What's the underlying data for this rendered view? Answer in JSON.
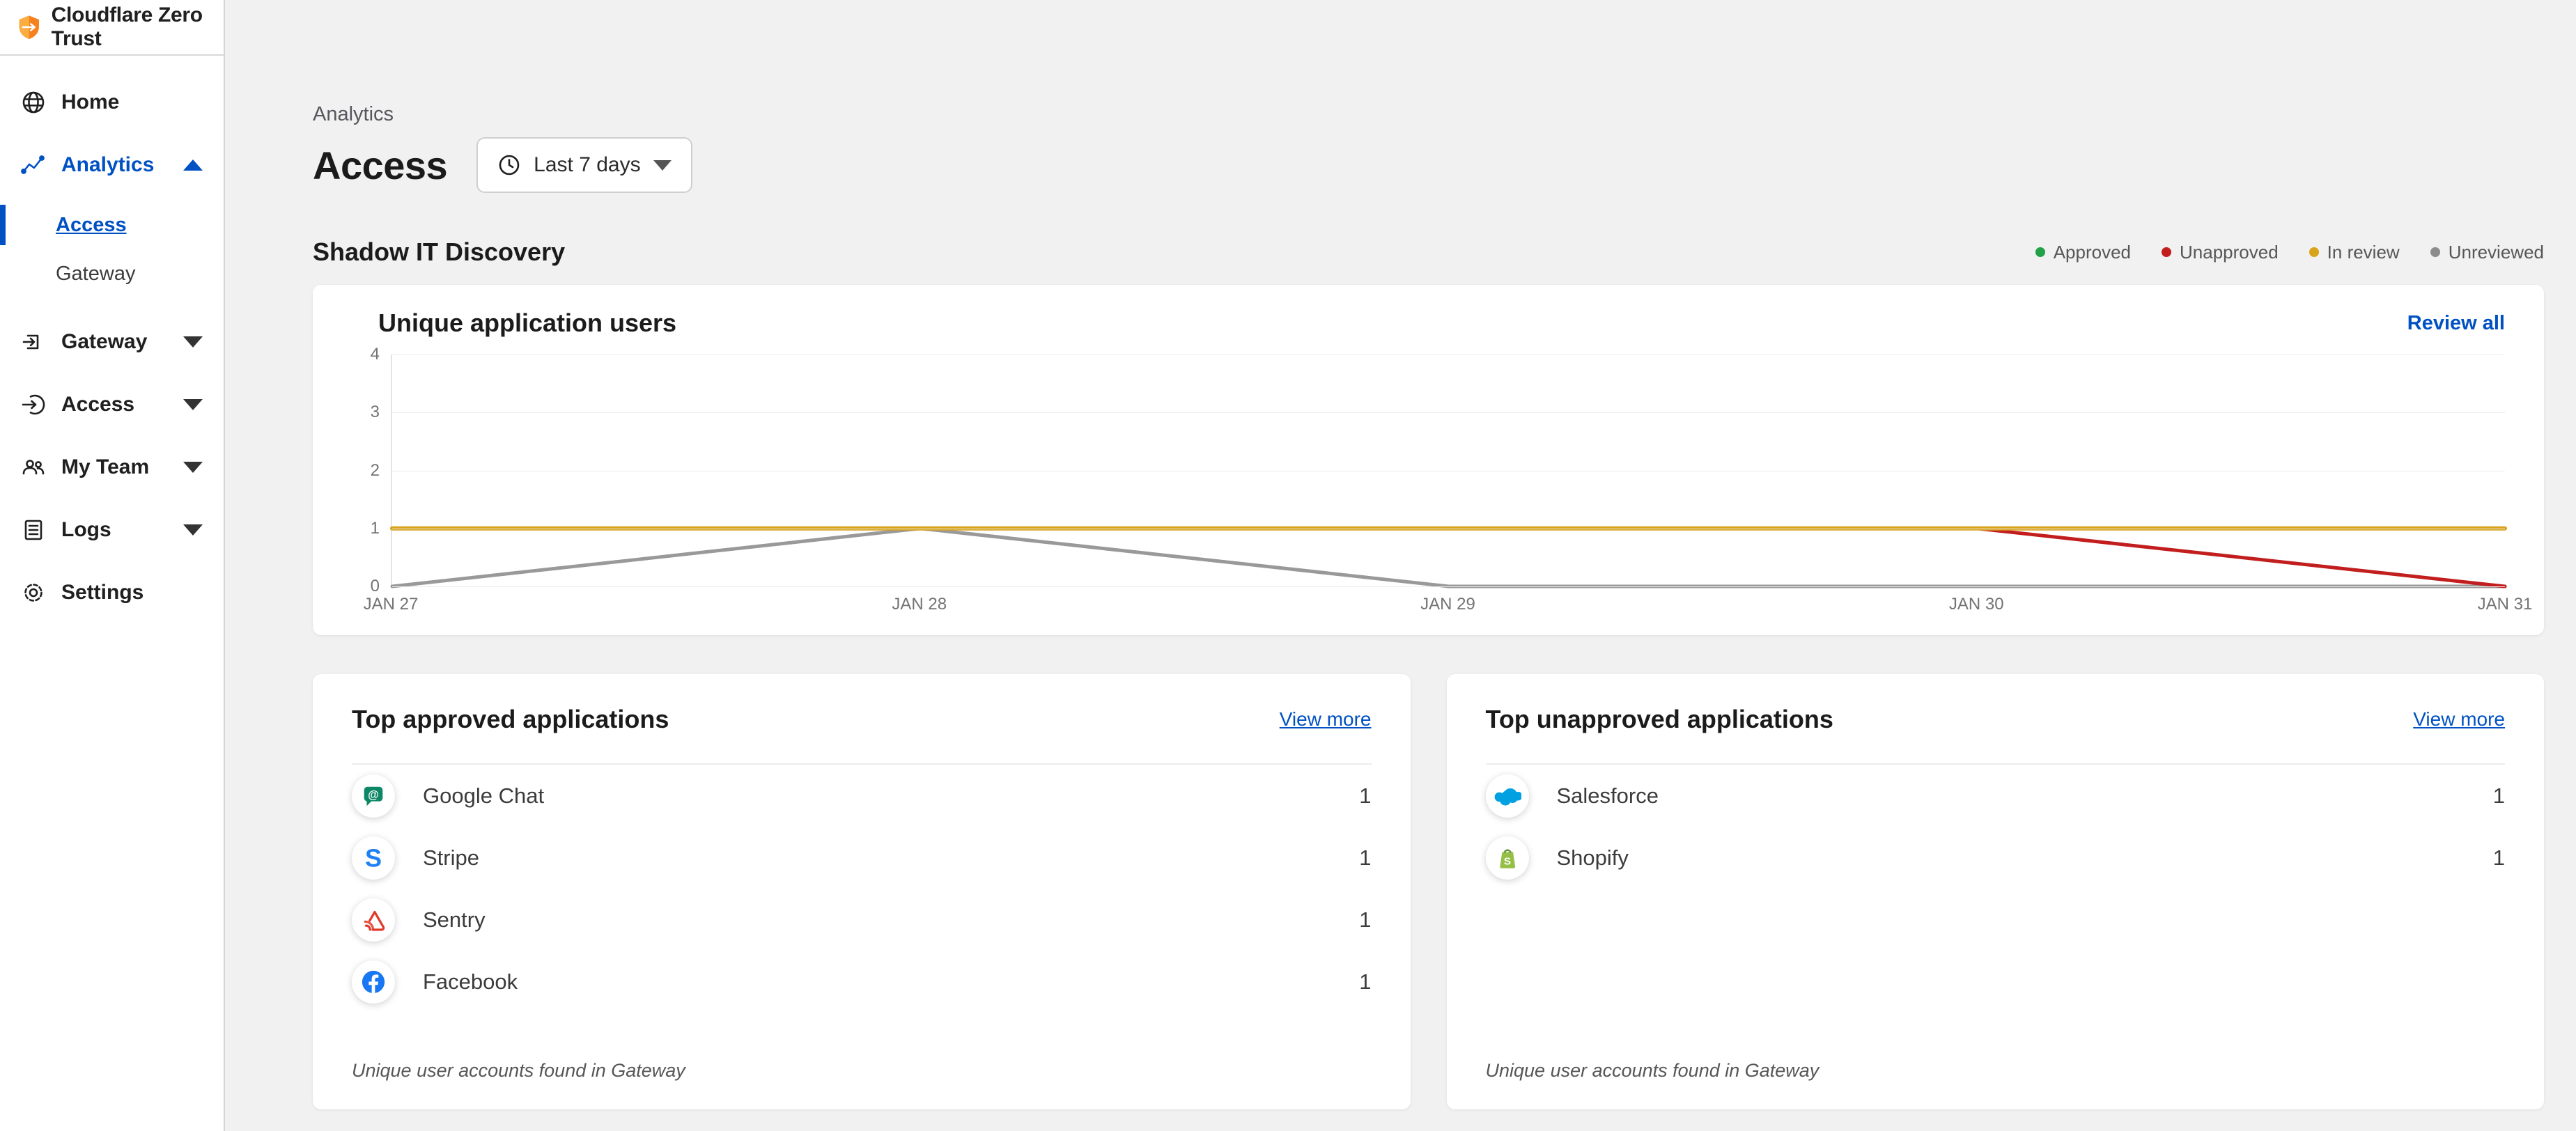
{
  "app": {
    "title": "Cloudflare Zero Trust"
  },
  "sidebar": {
    "items": [
      {
        "label": "Home",
        "icon": "globe-icon"
      },
      {
        "label": "Analytics",
        "icon": "analytics-icon",
        "expanded": true,
        "active": true,
        "children": [
          {
            "label": "Access",
            "active": true
          },
          {
            "label": "Gateway",
            "active": false
          }
        ]
      },
      {
        "label": "Gateway",
        "icon": "gateway-icon",
        "expanded": false
      },
      {
        "label": "Access",
        "icon": "access-icon",
        "expanded": false
      },
      {
        "label": "My Team",
        "icon": "team-icon",
        "expanded": false
      },
      {
        "label": "Logs",
        "icon": "logs-icon",
        "expanded": false
      },
      {
        "label": "Settings",
        "icon": "gear-icon"
      }
    ]
  },
  "header": {
    "breadcrumb": "Analytics",
    "title": "Access",
    "time_range": "Last 7 days",
    "time_icon": "clock-icon"
  },
  "section": {
    "title": "Shadow IT Discovery",
    "legend": [
      {
        "label": "Approved",
        "color": "#21a249"
      },
      {
        "label": "Unapproved",
        "color": "#c21e1e"
      },
      {
        "label": "In review",
        "color": "#d9a21b"
      },
      {
        "label": "Unreviewed",
        "color": "#8c8c8c"
      }
    ]
  },
  "chart_card": {
    "title": "Unique application users",
    "action": "Review all"
  },
  "chart_data": {
    "type": "line",
    "title": "Unique application users",
    "x": [
      "JAN 27",
      "JAN 28",
      "JAN 29",
      "JAN 30",
      "JAN 31"
    ],
    "series": [
      {
        "name": "Unreviewed",
        "color": "#999999",
        "values": [
          0,
          1,
          0,
          0,
          0
        ]
      },
      {
        "name": "Unapproved",
        "color": "#c21e1e",
        "values": [
          null,
          null,
          null,
          1,
          0
        ]
      },
      {
        "name": "In review",
        "color": "#d9a21b",
        "values": [
          1,
          1,
          1,
          1,
          1
        ]
      }
    ],
    "ylim": [
      0,
      4
    ],
    "yticks": [
      0,
      1,
      2,
      3,
      4
    ],
    "grid": true,
    "legend_position": "top-right-outside"
  },
  "approved_card": {
    "title": "Top approved applications",
    "action": "View more",
    "rows": [
      {
        "name": "Google Chat",
        "value": "1",
        "icon": "google-chat-icon"
      },
      {
        "name": "Stripe",
        "value": "1",
        "icon": "stripe-icon"
      },
      {
        "name": "Sentry",
        "value": "1",
        "icon": "sentry-icon"
      },
      {
        "name": "Facebook",
        "value": "1",
        "icon": "facebook-icon"
      }
    ],
    "footnote": "Unique user accounts found in Gateway"
  },
  "unapproved_card": {
    "title": "Top unapproved applications",
    "action": "View more",
    "rows": [
      {
        "name": "Salesforce",
        "value": "1",
        "icon": "salesforce-icon"
      },
      {
        "name": "Shopify",
        "value": "1",
        "icon": "shopify-icon"
      }
    ],
    "footnote": "Unique user accounts found in Gateway"
  },
  "colors": {
    "accent_blue": "#0051c3",
    "background": "#f1f1f2"
  }
}
